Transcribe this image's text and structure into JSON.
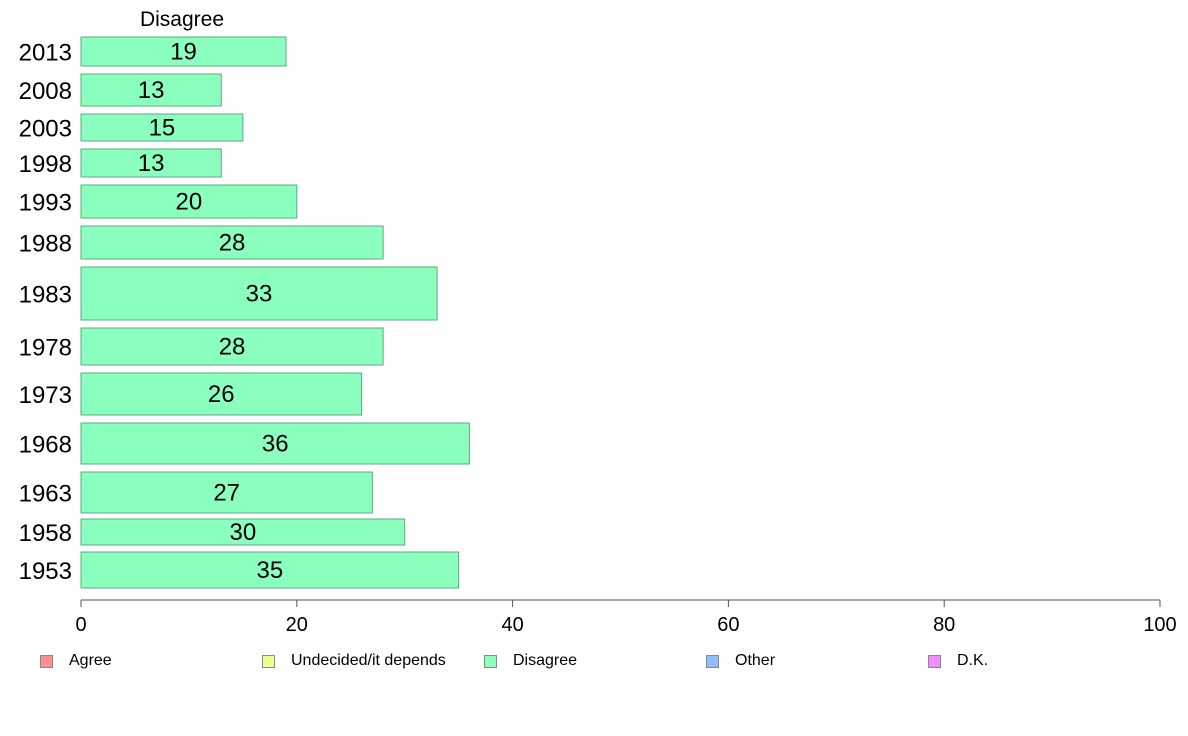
{
  "chart_data": {
    "type": "bar",
    "orientation": "horizontal",
    "title": "Disagree",
    "categories": [
      "2013",
      "2008",
      "2003",
      "1998",
      "1993",
      "1988",
      "1983",
      "1978",
      "1973",
      "1968",
      "1963",
      "1958",
      "1953"
    ],
    "values": [
      19,
      13,
      15,
      13,
      20,
      28,
      33,
      28,
      26,
      36,
      27,
      30,
      35
    ],
    "xlim": [
      0,
      100
    ],
    "xticks": [
      0,
      20,
      40,
      60,
      80,
      100
    ],
    "xlabel": "",
    "ylabel": "",
    "grid": false,
    "bar_color": "#8affbe",
    "legend_position": "bottom",
    "legend": [
      {
        "label": "Agree",
        "color": "#ff8f8f"
      },
      {
        "label": "Undecided/it depends",
        "color": "#efff8f"
      },
      {
        "label": "Disagree",
        "color": "#8affbe"
      },
      {
        "label": "Other",
        "color": "#8fbfff"
      },
      {
        "label": "D.K.",
        "color": "#ef8fff"
      }
    ]
  }
}
